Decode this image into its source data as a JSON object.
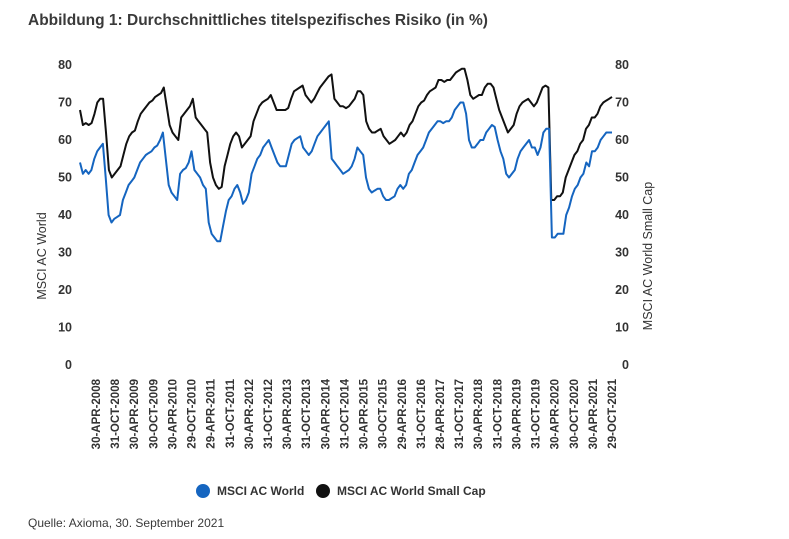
{
  "figure": {
    "title": "Abbildung 1: Durchschnittliches titelspezifisches Risiko (in %)",
    "source": "Quelle: Axioma, 30. September 2021"
  },
  "chart_data": {
    "type": "line",
    "title": "Abbildung 1: Durchschnittliches titelspezifisches Risiko (in %)",
    "ylabel_left": "MSCI AC World",
    "ylabel_right": "MSCI AC World Small Cap",
    "ylim": [
      0,
      80
    ],
    "yticks": [
      0,
      10,
      20,
      30,
      40,
      50,
      60,
      70,
      80
    ],
    "grid": false,
    "legend_position": "bottom-center",
    "x_tick_labels": [
      "30-APR-2008",
      "31-OCT-2008",
      "30-APR-2009",
      "30-OCT-2009",
      "30-APR-2010",
      "29-OCT-2010",
      "29-APR-2011",
      "31-OCT-2011",
      "30-APR-2012",
      "31-OCT-2012",
      "30-APR-2013",
      "31-OCT-2013",
      "30-APR-2014",
      "31-OCT-2014",
      "30-APR-2015",
      "30-OCT-2015",
      "29-APR-2016",
      "31-OCT-2016",
      "28-APR-2017",
      "31-OCT-2017",
      "30-APR-2018",
      "31-OCT-2018",
      "30-APR-2019",
      "31-OCT-2019",
      "30-APR-2020",
      "30-OCT-2020",
      "30-APR-2021",
      "29-OCT-2021"
    ],
    "series": [
      {
        "name": "MSCI AC World",
        "color": "#1565c0",
        "values": [
          54,
          51,
          52,
          51,
          52,
          55,
          57,
          58,
          59,
          50,
          40,
          38,
          39,
          39.5,
          40,
          44,
          46,
          48,
          49,
          50,
          52,
          54,
          55,
          56,
          56.5,
          57,
          58,
          58.5,
          60,
          62,
          55,
          48,
          46,
          45,
          44,
          51,
          52,
          52.5,
          54,
          57,
          52,
          51,
          50,
          48,
          47,
          38,
          35,
          34,
          33,
          33,
          37,
          41,
          44,
          45,
          47,
          48,
          46,
          43,
          44,
          46,
          51,
          53,
          55,
          56,
          58,
          59,
          60,
          58,
          56,
          54,
          53,
          53,
          53,
          56,
          59,
          60,
          60.5,
          61,
          58,
          57,
          56,
          57,
          59,
          61,
          62,
          63,
          64,
          65,
          55,
          54,
          53,
          52,
          51,
          51.5,
          52,
          53,
          55,
          58,
          57,
          56,
          50,
          47,
          46,
          46.5,
          47,
          47,
          45,
          44,
          44,
          44.5,
          45,
          47,
          48,
          47,
          48,
          51,
          52,
          54,
          56,
          57,
          58,
          60,
          62,
          63,
          64,
          65,
          65,
          64.5,
          65,
          65,
          66,
          68,
          69,
          70,
          70,
          67,
          60,
          58,
          58,
          59,
          60,
          60,
          62,
          63,
          64,
          63.5,
          60,
          57,
          55,
          51,
          50,
          51,
          52,
          55,
          57,
          58,
          59,
          60,
          58,
          58,
          56,
          58,
          62,
          63,
          63,
          34,
          34,
          35,
          35,
          35,
          40,
          42,
          45,
          47,
          48,
          50,
          51,
          54,
          53,
          57,
          57,
          58,
          60,
          61,
          62,
          62,
          62
        ]
      },
      {
        "name": "MSCI AC World Small Cap",
        "color": "#111111",
        "values": [
          68,
          64,
          64.5,
          64,
          64.5,
          67,
          70,
          71,
          71,
          62,
          52,
          50,
          51,
          52,
          53,
          56,
          59,
          61,
          62,
          62.5,
          65,
          67,
          68,
          69,
          70,
          70.5,
          71.5,
          72,
          72.5,
          74,
          69,
          64,
          62,
          61,
          60,
          66,
          67,
          68,
          69,
          71,
          66,
          65,
          64,
          63,
          62,
          54,
          50,
          48,
          47,
          47.5,
          53,
          56,
          59,
          61,
          62,
          61,
          58,
          59,
          60,
          61,
          65,
          67,
          69,
          70,
          70.5,
          71,
          72,
          70,
          68,
          68,
          68,
          68,
          68.5,
          71,
          73,
          73.5,
          74,
          74.5,
          72,
          71,
          70,
          71,
          72.5,
          74,
          75,
          76,
          77,
          77.5,
          71,
          70,
          69,
          69,
          68.5,
          69,
          70,
          71,
          73,
          73,
          72,
          65,
          63,
          62,
          62,
          62.5,
          63,
          61,
          60,
          59,
          59.5,
          60,
          61,
          62,
          61,
          62,
          64,
          65,
          67,
          69,
          70,
          70.5,
          72,
          73,
          73.5,
          74,
          76,
          76,
          75.5,
          76,
          76,
          77,
          78,
          78.5,
          79,
          79,
          76,
          72,
          71,
          71.5,
          72,
          72,
          74,
          75,
          75,
          74,
          71,
          68,
          66,
          64,
          62,
          63,
          64,
          67,
          69,
          70,
          70.5,
          71,
          70,
          69,
          70,
          72,
          74,
          74.5,
          74,
          44,
          44,
          45,
          45,
          46,
          50,
          52,
          54,
          56,
          57,
          59,
          60,
          63,
          64,
          66,
          66,
          67,
          69,
          70,
          70.5,
          71,
          71.5
        ]
      }
    ]
  }
}
